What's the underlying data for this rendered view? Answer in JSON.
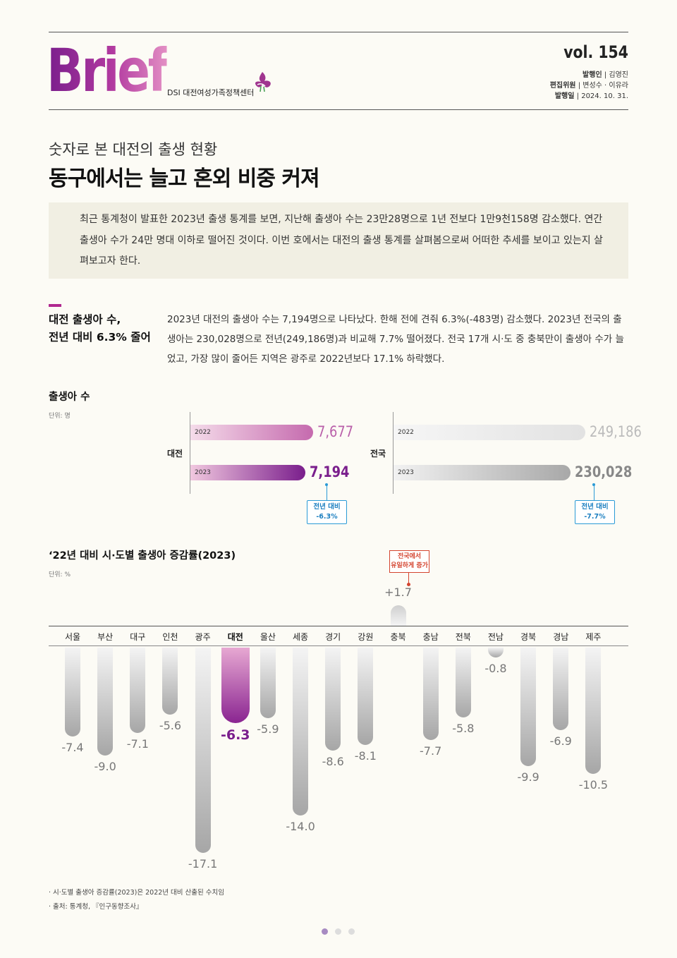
{
  "header": {
    "logo_text": "Brief",
    "org_name": "DSI 대전여성가족정책센터",
    "volume": "vol. 154",
    "publisher_label": "발행인",
    "publisher_name": "김영진",
    "editors_label": "편집위원",
    "editors_names": "변성수 · 이유라",
    "date_label": "발행일",
    "date_value": "2024. 10. 31."
  },
  "article": {
    "subtitle": "숫자로 본 대전의 출생 현황",
    "title": "동구에서는 늘고 혼외 비중 커져",
    "summary": "최근 통계청이 발표한 2023년 출생 통계를 보면, 지난해 출생아 수는 23만28명으로 1년 전보다 1만9천158명 감소했다. 연간 출생아 수가 24만 명대 이하로 떨어진 것이다. 이번 호에서는 대전의 출생 통계를 살펴봄으로써 어떠한 추세를 보이고 있는지 살펴보고자 한다."
  },
  "section1": {
    "heading_line1": "대전 출생아 수,",
    "heading_line2": "전년 대비 6.3% 줄어",
    "body": "2023년 대전의 출생아 수는 7,194명으로 나타났다. 한해 전에 견줘 6.3%(-483명) 감소했다. 2023년 전국의 출생아는 230,028명으로 전년(249,186명)과 비교해 7.7% 떨어졌다. 전국 17개 시·도 중 충북만이 출생아 수가 늘었고, 가장 많이 줄어든 지역은 광주로 2022년보다 17.1% 하락했다."
  },
  "chart_data": [
    {
      "type": "bar",
      "title": "출생아 수",
      "unit": "단위: 명",
      "groups": [
        {
          "name": "대전",
          "series": [
            {
              "name": "2022",
              "value": 7677,
              "label": "7,677"
            },
            {
              "name": "2023",
              "value": 7194,
              "label": "7,194"
            }
          ],
          "callout_line1": "전년 대비",
          "callout_line2": "-6.3%",
          "colors": {
            "2022": "#e6a9cf",
            "2023": "#7a1e8c"
          }
        },
        {
          "name": "전국",
          "series": [
            {
              "name": "2022",
              "value": 249186,
              "label": "249,186"
            },
            {
              "name": "2023",
              "value": 230028,
              "label": "230,028"
            }
          ],
          "callout_line1": "전년 대비",
          "callout_line2": "-7.7%",
          "colors": {
            "2022": "#e6e6e6",
            "2023": "#999999"
          }
        }
      ]
    },
    {
      "type": "bar",
      "title": "‘22년 대비 시·도별 출생아 증감률(2023)",
      "unit": "단위: %",
      "categories": [
        "서울",
        "부산",
        "대구",
        "인천",
        "광주",
        "대전",
        "울산",
        "세종",
        "경기",
        "강원",
        "충북",
        "충남",
        "전북",
        "전남",
        "경북",
        "경남",
        "제주"
      ],
      "values": [
        -7.4,
        -9.0,
        -7.1,
        -5.6,
        -17.1,
        -6.3,
        -5.9,
        -14.0,
        -8.6,
        -8.1,
        1.7,
        -7.7,
        -5.8,
        -0.8,
        -9.9,
        -6.9,
        -10.5
      ],
      "labels": [
        "-7.4",
        "-9.0",
        "-7.1",
        "-5.6",
        "-17.1",
        "-6.3",
        "-5.9",
        "-14.0",
        "-8.6",
        "-8.1",
        "+1.7",
        "-7.7",
        "-5.8",
        "-0.8",
        "-9.9",
        "-6.9",
        "-10.5"
      ],
      "highlight": "대전",
      "annotation_line1": "전국에서",
      "annotation_line2": "유일하게 증가",
      "colors": {
        "highlight": "#8a2591",
        "default": "#cfcfcf",
        "increase_note": "#d4442f"
      }
    }
  ],
  "notes": {
    "note1": "· 시·도별 출생아 증감률(2023)은 2022년 대비 산출된 수치임",
    "note2": "· 출처: 통계청, 『인구동향조사』"
  },
  "pagination": {
    "current": 1,
    "total": 3
  }
}
